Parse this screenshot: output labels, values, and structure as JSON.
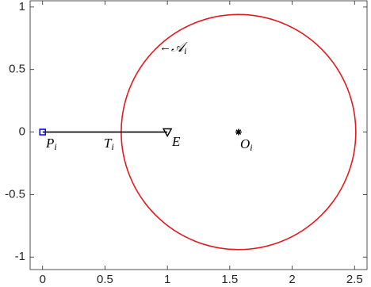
{
  "chart_data": {
    "type": "scatter",
    "xlim": [
      -0.1,
      2.6
    ],
    "ylim": [
      -1.1,
      1.05
    ],
    "xticks": [
      0,
      0.5,
      1,
      1.5,
      2,
      2.5
    ],
    "yticks": [
      -1,
      -0.5,
      0,
      0.5,
      1
    ],
    "grid": false,
    "circle": {
      "center": [
        1.57,
        0
      ],
      "radius": 0.94,
      "color": "#e31a1c"
    },
    "segment": {
      "x": [
        0,
        1
      ],
      "y": [
        0,
        0
      ],
      "color": "#000000"
    },
    "points": [
      {
        "x": 0,
        "y": 0,
        "marker": "square",
        "color": "#0000ff"
      },
      {
        "x": 1,
        "y": 0,
        "marker": "triangle",
        "color": "#000000"
      },
      {
        "x": 1.57,
        "y": 0,
        "marker": "asterisk",
        "color": "#000000"
      }
    ],
    "annotations": [
      {
        "text": "P",
        "sub": "i"
      },
      {
        "text": "T",
        "sub": "i"
      },
      {
        "text": "E"
      },
      {
        "text": "O",
        "sub": "i"
      },
      {
        "arrow": "←",
        "text": "𝒜",
        "sub": "i"
      }
    ]
  }
}
